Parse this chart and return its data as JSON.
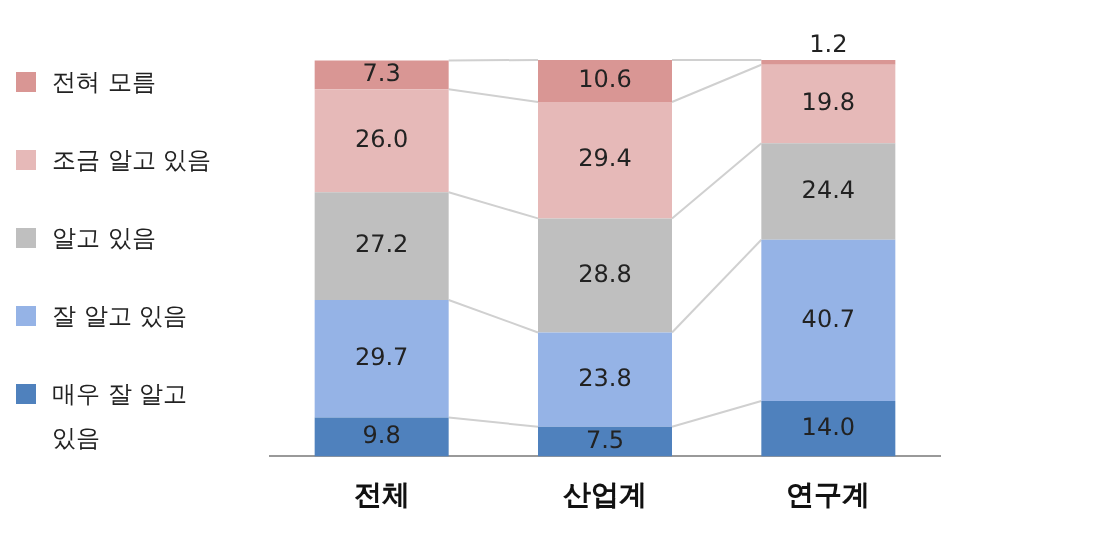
{
  "chart_data": {
    "type": "bar",
    "stacked": true,
    "categories": [
      "전체",
      "산업계",
      "연구계"
    ],
    "series": [
      {
        "name": "매우 잘 알고 있음",
        "color": "#4f81bd",
        "values": [
          9.8,
          7.5,
          14.0
        ],
        "value_labels": [
          "9.8",
          "7.5",
          "14.0"
        ]
      },
      {
        "name": "잘 알고 있음",
        "color": "#95b3e6",
        "values": [
          29.7,
          23.8,
          40.7
        ],
        "value_labels": [
          "29.7",
          "23.8",
          "40.7"
        ]
      },
      {
        "name": "알고 있음",
        "color": "#bfbfbf",
        "values": [
          27.2,
          28.8,
          24.4
        ],
        "value_labels": [
          "27.2",
          "28.8",
          "24.4"
        ]
      },
      {
        "name": "조금 알고 있음",
        "color": "#e6b9b8",
        "values": [
          26.0,
          29.4,
          19.8
        ],
        "value_labels": [
          "26.0",
          "29.4",
          "19.8"
        ]
      },
      {
        "name": "전혀 모름",
        "color": "#d99694",
        "values": [
          7.3,
          10.6,
          1.2
        ],
        "value_labels": [
          "7.3",
          "10.6",
          "1.2"
        ]
      }
    ],
    "legend": "left"
  }
}
